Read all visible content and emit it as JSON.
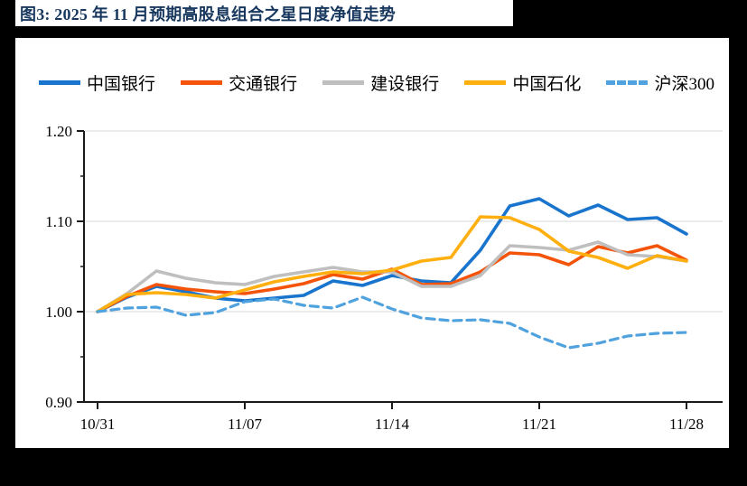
{
  "figure": {
    "title": "图3:  2025 年 11 月预期高股息组合之星日度净值走势",
    "title_color": "#17375E"
  },
  "colors": {
    "page_background": "#000000",
    "panel_background": "#FFFFFF",
    "axis": "#1A1A1A",
    "grid": "#D9D9D9",
    "tick_label": "#000000"
  },
  "chart_data": {
    "type": "line",
    "title": "图3:  2025 年 11 月预期高股息组合之星日度净值走势",
    "xlabel": "",
    "ylabel": "",
    "ylim": [
      0.9,
      1.2
    ],
    "grid": true,
    "legend_position": "top",
    "x_ticks": [
      {
        "label": "10/31",
        "index": 0
      },
      {
        "label": "11/07",
        "index": 5
      },
      {
        "label": "11/14",
        "index": 10
      },
      {
        "label": "11/21",
        "index": 15
      },
      {
        "label": "11/28",
        "index": 20
      }
    ],
    "y_ticks": [
      {
        "label": "1.20",
        "value": 1.2
      },
      {
        "label": "1.10",
        "value": 1.1
      },
      {
        "label": "1.00",
        "value": 1.0
      },
      {
        "label": "0.90",
        "value": 0.9
      }
    ],
    "y_minor_ticks": [
      1.15,
      1.05,
      0.95
    ],
    "series": [
      {
        "name": "中国银行",
        "color": "#1874CD",
        "style": "solid",
        "values": [
          1.0,
          1.016,
          1.028,
          1.022,
          1.015,
          1.012,
          1.015,
          1.018,
          1.034,
          1.029,
          1.04,
          1.034,
          1.032,
          1.068,
          1.117,
          1.125,
          1.106,
          1.118,
          1.102,
          1.104,
          1.086
        ]
      },
      {
        "name": "交通银行",
        "color": "#F4540A",
        "style": "solid",
        "values": [
          1.0,
          1.017,
          1.03,
          1.025,
          1.022,
          1.02,
          1.025,
          1.031,
          1.041,
          1.036,
          1.047,
          1.03,
          1.031,
          1.044,
          1.065,
          1.063,
          1.052,
          1.072,
          1.065,
          1.073,
          1.057
        ]
      },
      {
        "name": "建设银行",
        "color": "#BFBFBF",
        "style": "solid",
        "values": [
          1.0,
          1.02,
          1.045,
          1.037,
          1.032,
          1.03,
          1.039,
          1.044,
          1.049,
          1.044,
          1.044,
          1.028,
          1.028,
          1.04,
          1.073,
          1.071,
          1.068,
          1.077,
          1.063,
          1.061,
          1.056
        ]
      },
      {
        "name": "中国石化",
        "color": "#FFAF0F",
        "style": "solid",
        "values": [
          1.0,
          1.019,
          1.021,
          1.019,
          1.015,
          1.024,
          1.033,
          1.039,
          1.044,
          1.042,
          1.046,
          1.056,
          1.06,
          1.105,
          1.104,
          1.091,
          1.067,
          1.06,
          1.048,
          1.062,
          1.056
        ]
      },
      {
        "name": "沪深300",
        "color": "#4FA2DE",
        "style": "dashed",
        "values": [
          1.0,
          1.004,
          1.005,
          0.996,
          0.999,
          1.011,
          1.014,
          1.007,
          1.004,
          1.016,
          1.003,
          0.993,
          0.99,
          0.991,
          0.987,
          0.972,
          0.96,
          0.965,
          0.973,
          0.976,
          0.977
        ]
      }
    ]
  }
}
